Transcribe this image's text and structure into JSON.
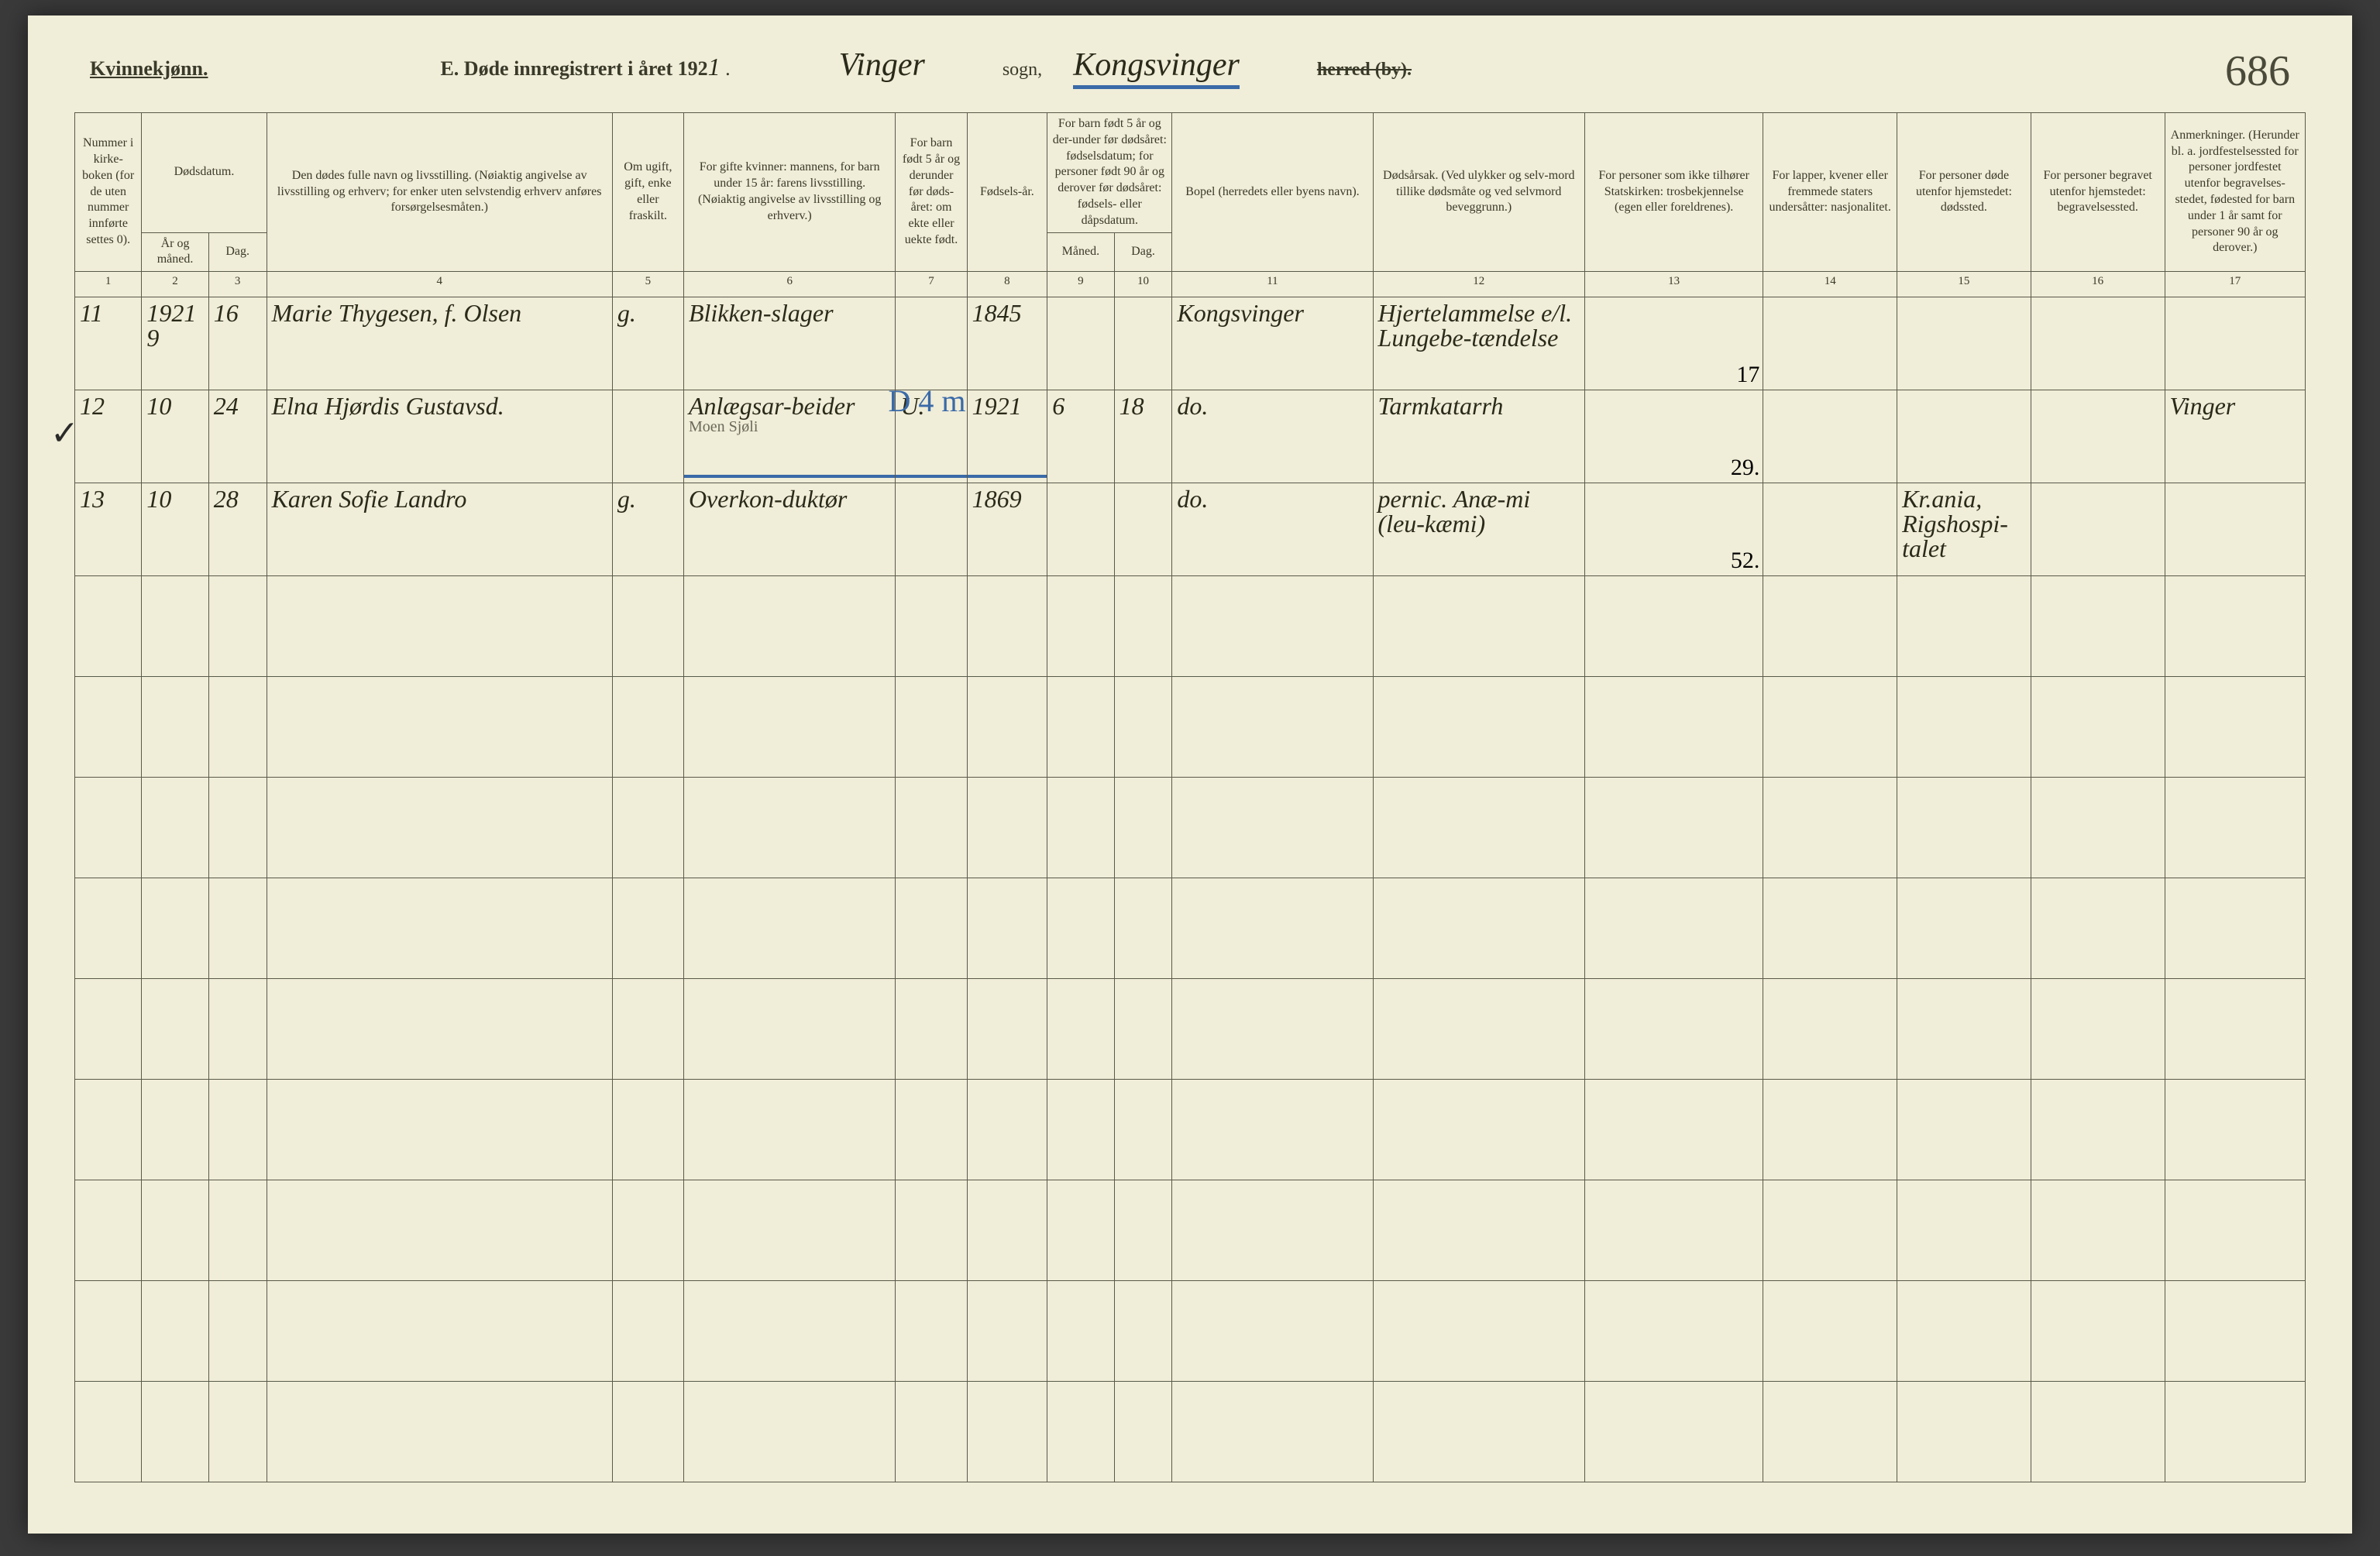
{
  "header": {
    "gender": "Kvinnekjønn.",
    "title_prefix": "E.  Døde innregistrert i året 192",
    "year_digit": "1",
    "title_suffix": " .",
    "sogn_value": "Vinger",
    "sogn_label": "sogn,",
    "herred_value": "Kongsvinger",
    "herred_label_strike": "herred (by).",
    "page_number": "686"
  },
  "columns": {
    "c1": "Nummer i kirke-boken (for de uten nummer innførte settes 0).",
    "c2_3_group": "Dødsdatum.",
    "c2": "År og måned.",
    "c3": "Dag.",
    "c4": "Den dødes fulle navn og livsstilling. (Nøiaktig angivelse av livsstilling og erhverv; for enker uten selvstendig erhverv anføres forsørgelsesmåten.)",
    "c5": "Om ugift, gift, enke eller fraskilt.",
    "c6": "For gifte kvinner: mannens, for barn under 15 år: farens livsstilling. (Nøiaktig angivelse av livsstilling og erhverv.)",
    "c7": "For barn født 5 år og derunder før døds-året: om ekte eller uekte født.",
    "c8": "Fødsels-år.",
    "c9_10_group": "For barn født 5 år og der-under før dødsåret: fødselsdatum; for personer født 90 år og derover før dødsåret: fødsels- eller dåpsdatum.",
    "c9": "Måned.",
    "c10": "Dag.",
    "c11": "Bopel (herredets eller byens navn).",
    "c12": "Dødsårsak. (Ved ulykker og selv-mord tillike dødsmåte og ved selvmord beveggrunn.)",
    "c13": "For personer som ikke tilhører Statskirken: trosbekjennelse (egen eller foreldrenes).",
    "c14": "For lapper, kvener eller fremmede staters undersåtter: nasjonalitet.",
    "c15": "For personer døde utenfor hjemstedet: dødssted.",
    "c16": "For personer begravet utenfor hjemstedet: begravelsessted.",
    "c17": "Anmerkninger. (Herunder bl. a. jordfestelsessted for personer jordfestet utenfor begravelses-stedet, fødested for barn under 1 år samt for personer 90 år og derover.)"
  },
  "colnums": [
    "1",
    "2",
    "3",
    "4",
    "5",
    "6",
    "7",
    "8",
    "9",
    "10",
    "11",
    "12",
    "13",
    "14",
    "15",
    "16",
    "17"
  ],
  "rows": [
    {
      "num": "11",
      "year_month": "1921\n9",
      "day": "16",
      "name": "Marie Thygesen, f. Olsen",
      "status": "g.",
      "spouse_occ": "Blikken-slager",
      "c7": "",
      "birth_year": "1845",
      "c9": "",
      "c10": "",
      "residence": "Kongsvinger",
      "cause": "Hjertelammelse e/l. Lungebe-tændelse",
      "c13_sub": "17",
      "c14": "",
      "c15": "",
      "c16": "",
      "c17": "",
      "tick": "",
      "blue_note": ""
    },
    {
      "num": "12",
      "year_month": "10",
      "day": "24",
      "name": "Elna Hjørdis Gustavsd.",
      "status": "",
      "spouse_occ": "Anlægsar-beider",
      "spouse_occ_sub": "Moen Sjøli",
      "c7": "U.",
      "birth_year": "1921",
      "c9": "6",
      "c10": "18",
      "residence": "do.",
      "cause": "Tarmkatarrh",
      "c13_sub": "29.",
      "c14": "",
      "c15": "",
      "c16": "",
      "c17": "Vinger",
      "tick": "✓",
      "blue_note": "D 4 m"
    },
    {
      "num": "13",
      "year_month": "10",
      "day": "28",
      "name": "Karen Sofie Landro",
      "status": "g.",
      "spouse_occ": "Overkon-duktør",
      "c7": "",
      "birth_year": "1869",
      "c9": "",
      "c10": "",
      "residence": "do.",
      "cause": "pernic. Anæ-mi (leu-kæmi)",
      "c13_sub": "52.",
      "c14": "",
      "c15": "Kr.ania, Rigshospi-talet",
      "c16": "",
      "c17": "",
      "tick": "",
      "blue_note": ""
    }
  ],
  "empty_row_count": 9,
  "colors": {
    "paper": "#f0edd8",
    "ink": "#3a3a2a",
    "rule": "#5a5a4a",
    "blue": "#3a6aa8"
  },
  "col_widths_pct": [
    3.0,
    3.0,
    2.6,
    15.5,
    3.2,
    9.5,
    3.2,
    3.6,
    3.0,
    2.6,
    9.0,
    9.5,
    8.0,
    6.0,
    6.0,
    6.0,
    6.3
  ]
}
